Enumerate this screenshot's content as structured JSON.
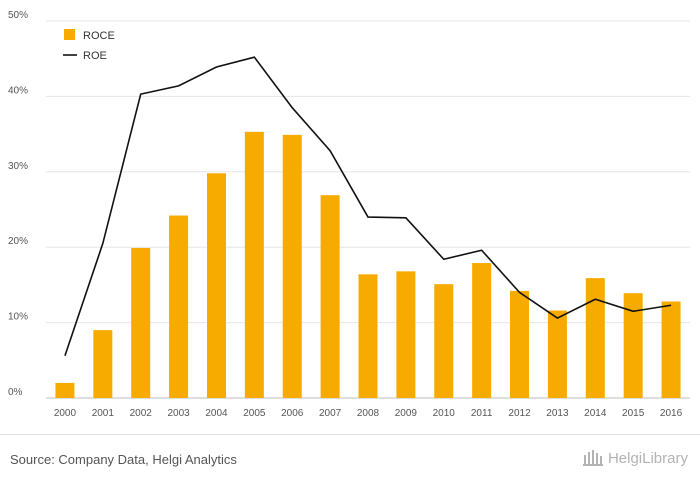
{
  "chart_data": {
    "type": "bar",
    "categories": [
      "2000",
      "2001",
      "2002",
      "2003",
      "2004",
      "2005",
      "2006",
      "2007",
      "2008",
      "2009",
      "2010",
      "2011",
      "2012",
      "2013",
      "2014",
      "2015",
      "2016"
    ],
    "series": [
      {
        "name": "ROCE",
        "type": "bar",
        "color": "#f7ab00",
        "values": [
          2.0,
          9.0,
          19.9,
          24.2,
          29.8,
          35.3,
          34.9,
          26.9,
          16.4,
          16.8,
          15.1,
          17.9,
          14.2,
          11.6,
          15.9,
          13.9,
          12.8
        ]
      },
      {
        "name": "ROE",
        "type": "line",
        "color": "#111111",
        "values": [
          5.6,
          20.5,
          40.3,
          41.4,
          43.9,
          45.2,
          38.5,
          32.8,
          24.0,
          23.9,
          18.4,
          19.6,
          14.0,
          10.6,
          13.1,
          11.5,
          12.3
        ]
      }
    ],
    "ylim": [
      0,
      50
    ],
    "yticks": [
      "0%",
      "10%",
      "20%",
      "30%",
      "40%",
      "50%"
    ],
    "ytick_values": [
      0,
      10,
      20,
      30,
      40,
      50
    ],
    "grid": true,
    "legend_position": "top-left",
    "xlabel": "",
    "ylabel": ""
  },
  "footer": {
    "source": "Source: Company Data, Helgi Analytics",
    "logo_text": "HelgiLibrary",
    "logo_icon": "library-building-icon"
  }
}
